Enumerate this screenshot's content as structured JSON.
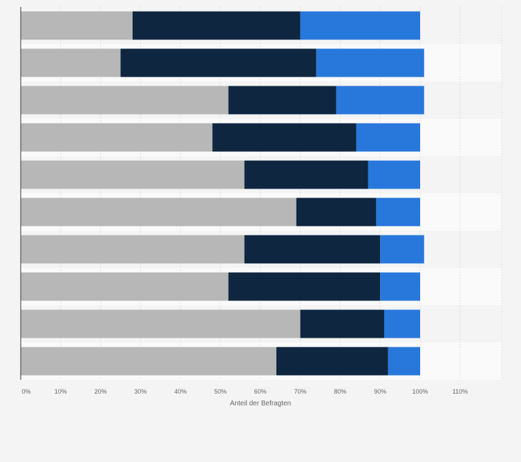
{
  "chart_data": {
    "type": "bar",
    "orientation": "horizontal",
    "stacked": true,
    "title": "",
    "xlabel": "Anteil der Befragten",
    "ylabel": "",
    "xlim": [
      0,
      120
    ],
    "x_ticks": [
      0,
      10,
      20,
      30,
      40,
      50,
      60,
      70,
      80,
      90,
      100,
      110
    ],
    "x_tick_labels": [
      "0%",
      "10%",
      "20%",
      "30%",
      "40%",
      "50%",
      "60%",
      "70%",
      "80%",
      "90%",
      "100%",
      "110%"
    ],
    "grid": true,
    "categories": [
      "",
      "",
      "",
      "",
      "",
      "",
      "",
      "",
      "",
      ""
    ],
    "series": [
      {
        "color": "#b7b7b7",
        "values": [
          28,
          25,
          52,
          48,
          56,
          69,
          56,
          52,
          70,
          64
        ]
      },
      {
        "color": "#0f2640",
        "values": [
          42,
          49,
          27,
          36,
          31,
          20,
          34,
          38,
          21,
          28
        ]
      },
      {
        "color": "#2878dc",
        "values": [
          30,
          27,
          22,
          16,
          13,
          11,
          11,
          10,
          9,
          8
        ]
      }
    ]
  }
}
